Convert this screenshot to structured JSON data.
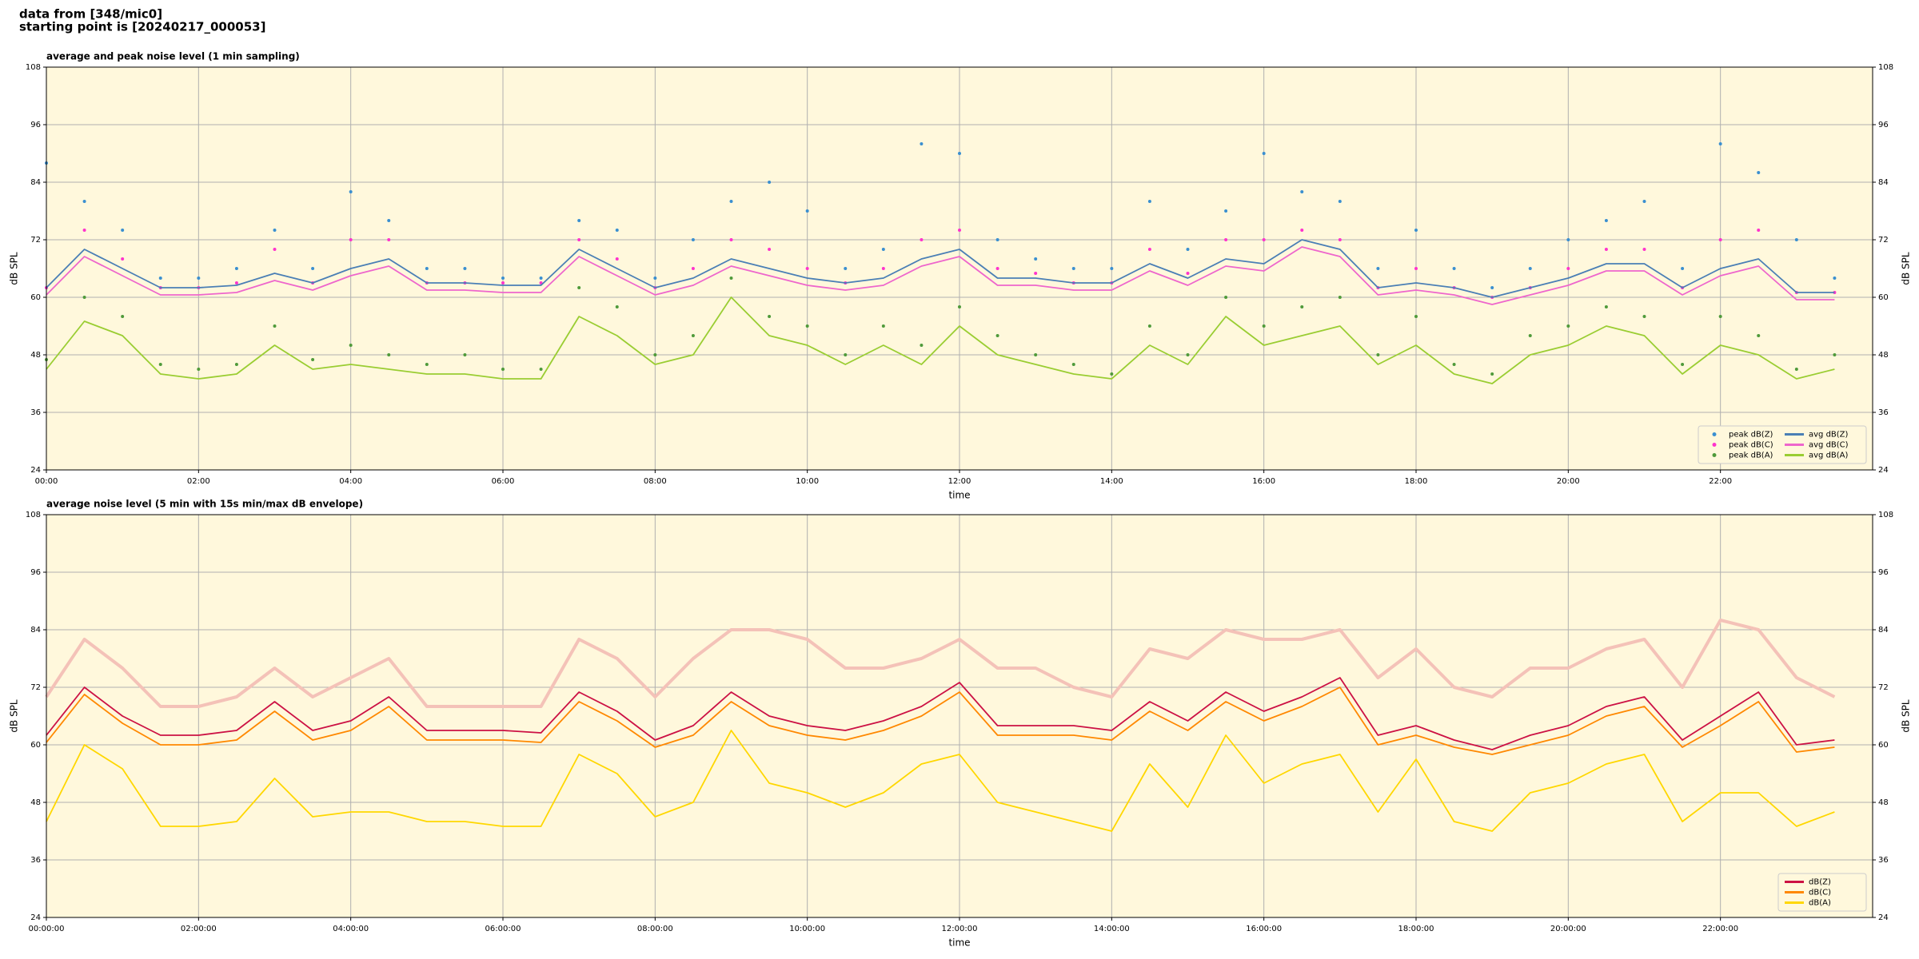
{
  "header": {
    "line1": "data from [348/mic0]",
    "line2": "starting point is [20240217_000053]"
  },
  "chart_data": [
    {
      "type": "line",
      "title": "average and peak noise level (1 min sampling)",
      "xlabel": "time",
      "ylabel": "dB SPL",
      "xlim": [
        0,
        24
      ],
      "xticks": [
        {
          "value": 0,
          "label": "00:00"
        },
        {
          "value": 2,
          "label": "02:00"
        },
        {
          "value": 4,
          "label": "04:00"
        },
        {
          "value": 6,
          "label": "06:00"
        },
        {
          "value": 8,
          "label": "08:00"
        },
        {
          "value": 10,
          "label": "10:00"
        },
        {
          "value": 12,
          "label": "12:00"
        },
        {
          "value": 14,
          "label": "14:00"
        },
        {
          "value": 16,
          "label": "16:00"
        },
        {
          "value": 18,
          "label": "18:00"
        },
        {
          "value": 20,
          "label": "20:00"
        },
        {
          "value": 22,
          "label": "22:00"
        }
      ],
      "ylim": [
        24,
        108
      ],
      "yticks": [
        24,
        36,
        48,
        60,
        72,
        84,
        96,
        108
      ],
      "grid": true,
      "legend": "lower right",
      "legend_columns": 2,
      "x": [
        0,
        0.5,
        1,
        1.5,
        2,
        2.5,
        3,
        3.5,
        4,
        4.5,
        5,
        5.5,
        6,
        6.5,
        7,
        7.5,
        8,
        8.5,
        9,
        9.5,
        10,
        10.5,
        11,
        11.5,
        12,
        12.5,
        13,
        13.5,
        14,
        14.5,
        15,
        15.5,
        16,
        16.5,
        17,
        17.5,
        18,
        18.5,
        19,
        19.5,
        20,
        20.5,
        21,
        21.5,
        22,
        22.5,
        23,
        23.5
      ],
      "series": [
        {
          "name": "peak dB(Z)",
          "type": "scatter",
          "color": "#3a8fd0",
          "values": [
            88,
            80,
            74,
            64,
            64,
            66,
            74,
            66,
            82,
            76,
            66,
            66,
            64,
            64,
            76,
            74,
            64,
            72,
            80,
            84,
            78,
            66,
            70,
            92,
            90,
            72,
            68,
            66,
            66,
            80,
            70,
            78,
            90,
            82,
            80,
            66,
            74,
            66,
            62,
            66,
            72,
            76,
            80,
            66,
            92,
            86,
            72,
            64
          ]
        },
        {
          "name": "peak dB(C)",
          "type": "scatter",
          "color": "#ff33cc",
          "values": [
            62,
            74,
            68,
            62,
            62,
            63,
            70,
            63,
            72,
            72,
            63,
            63,
            63,
            63,
            72,
            68,
            62,
            66,
            72,
            70,
            66,
            63,
            66,
            72,
            74,
            66,
            65,
            63,
            63,
            70,
            65,
            72,
            72,
            74,
            72,
            62,
            66,
            62,
            60,
            62,
            66,
            70,
            70,
            62,
            72,
            74,
            61,
            61
          ]
        },
        {
          "name": "peak dB(A)",
          "type": "scatter",
          "color": "#4f9a3a",
          "values": [
            47,
            60,
            56,
            46,
            45,
            46,
            54,
            47,
            50,
            48,
            46,
            48,
            45,
            45,
            62,
            58,
            48,
            52,
            64,
            56,
            54,
            48,
            54,
            50,
            58,
            52,
            48,
            46,
            44,
            54,
            48,
            60,
            54,
            58,
            60,
            48,
            56,
            46,
            44,
            52,
            54,
            58,
            56,
            46,
            56,
            52,
            45,
            48
          ]
        },
        {
          "name": "avg dB(Z)",
          "type": "line",
          "color": "#4a7fb5",
          "values": [
            62,
            70,
            66,
            62,
            62,
            62.5,
            65,
            63,
            66,
            68,
            63,
            63,
            62.5,
            62.5,
            70,
            66,
            62,
            64,
            68,
            66,
            64,
            63,
            64,
            68,
            70,
            64,
            64,
            63,
            63,
            67,
            64,
            68,
            67,
            72,
            70,
            62,
            63,
            62,
            60,
            62,
            64,
            67,
            67,
            62,
            66,
            68,
            61,
            61
          ]
        },
        {
          "name": "avg dB(C)",
          "type": "line",
          "color": "#ee66cc",
          "values": [
            60.5,
            68.5,
            64.5,
            60.5,
            60.5,
            61,
            63.5,
            61.5,
            64.5,
            66.5,
            61.5,
            61.5,
            61,
            61,
            68.5,
            64.5,
            60.5,
            62.5,
            66.5,
            64.5,
            62.5,
            61.5,
            62.5,
            66.5,
            68.5,
            62.5,
            62.5,
            61.5,
            61.5,
            65.5,
            62.5,
            66.5,
            65.5,
            70.5,
            68.5,
            60.5,
            61.5,
            60.5,
            58.5,
            60.5,
            62.5,
            65.5,
            65.5,
            60.5,
            64.5,
            66.5,
            59.5,
            59.5
          ]
        },
        {
          "name": "avg dB(A)",
          "type": "line",
          "color": "#9acd32",
          "values": [
            45,
            55,
            52,
            44,
            43,
            44,
            50,
            45,
            46,
            45,
            44,
            44,
            43,
            43,
            56,
            52,
            46,
            48,
            60,
            52,
            50,
            46,
            50,
            46,
            54,
            48,
            46,
            44,
            43,
            50,
            46,
            56,
            50,
            52,
            54,
            46,
            50,
            44,
            42,
            48,
            50,
            54,
            52,
            44,
            50,
            48,
            43,
            45
          ]
        }
      ]
    },
    {
      "type": "line",
      "title": "average noise level (5 min with 15s min/max dB envelope)",
      "xlabel": "time",
      "ylabel": "dB SPL",
      "xlim": [
        0,
        24
      ],
      "xticks": [
        {
          "value": 0,
          "label": "00:00:00"
        },
        {
          "value": 2,
          "label": "02:00:00"
        },
        {
          "value": 4,
          "label": "04:00:00"
        },
        {
          "value": 6,
          "label": "06:00:00"
        },
        {
          "value": 8,
          "label": "08:00:00"
        },
        {
          "value": 10,
          "label": "10:00:00"
        },
        {
          "value": 12,
          "label": "12:00:00"
        },
        {
          "value": 14,
          "label": "14:00:00"
        },
        {
          "value": 16,
          "label": "16:00:00"
        },
        {
          "value": 18,
          "label": "18:00:00"
        },
        {
          "value": 20,
          "label": "20:00:00"
        },
        {
          "value": 22,
          "label": "22:00:00"
        }
      ],
      "ylim": [
        24,
        108
      ],
      "yticks": [
        24,
        36,
        48,
        60,
        72,
        84,
        96,
        108
      ],
      "grid": true,
      "legend": "lower right",
      "legend_columns": 1,
      "x": [
        0,
        0.5,
        1,
        1.5,
        2,
        2.5,
        3,
        3.5,
        4,
        4.5,
        5,
        5.5,
        6,
        6.5,
        7,
        7.5,
        8,
        8.5,
        9,
        9.5,
        10,
        10.5,
        11,
        11.5,
        12,
        12.5,
        13,
        13.5,
        14,
        14.5,
        15,
        15.5,
        16,
        16.5,
        17,
        17.5,
        18,
        18.5,
        19,
        19.5,
        20,
        20.5,
        21,
        21.5,
        22,
        22.5,
        23,
        23.5
      ],
      "series": [
        {
          "name": "dB(Z)",
          "type": "line",
          "color": "#cc1144",
          "envelope_color": "#f4c2b8",
          "max_values": [
            70,
            82,
            76,
            68,
            68,
            70,
            76,
            70,
            74,
            78,
            68,
            68,
            68,
            68,
            82,
            78,
            70,
            78,
            84,
            84,
            82,
            76,
            76,
            78,
            82,
            76,
            76,
            72,
            70,
            80,
            78,
            84,
            82,
            82,
            84,
            74,
            80,
            72,
            70,
            76,
            76,
            80,
            82,
            72,
            86,
            84,
            74,
            70
          ],
          "values": [
            62,
            72,
            66,
            62,
            62,
            63,
            69,
            63,
            65,
            70,
            63,
            63,
            63,
            62.5,
            71,
            67,
            61,
            64,
            71,
            66,
            64,
            63,
            65,
            68,
            73,
            64,
            64,
            64,
            63,
            69,
            65,
            71,
            67,
            70,
            74,
            62,
            64,
            61,
            59,
            62,
            64,
            68,
            70,
            61,
            66,
            71,
            60,
            61
          ]
        },
        {
          "name": "dB(C)",
          "type": "line",
          "color": "#ff8800",
          "values": [
            60.5,
            70.5,
            64.5,
            60,
            60,
            61,
            67,
            61,
            63,
            68,
            61,
            61,
            61,
            60.5,
            69,
            65,
            59.5,
            62,
            69,
            64,
            62,
            61,
            63,
            66,
            71,
            62,
            62,
            62,
            61,
            67,
            63,
            69,
            65,
            68,
            72,
            60,
            62,
            59.5,
            58,
            60,
            62,
            66,
            68,
            59.5,
            64,
            69,
            58.5,
            59.5
          ]
        },
        {
          "name": "dB(A)",
          "type": "line",
          "color": "#ffd700",
          "values": [
            44,
            60,
            55,
            43,
            43,
            44,
            53,
            45,
            46,
            46,
            44,
            44,
            43,
            43,
            58,
            54,
            45,
            48,
            63,
            52,
            50,
            47,
            50,
            56,
            58,
            48,
            46,
            44,
            42,
            56,
            47,
            62,
            52,
            56,
            58,
            46,
            57,
            44,
            42,
            50,
            52,
            56,
            58,
            44,
            50,
            50,
            43,
            46
          ]
        }
      ]
    }
  ]
}
